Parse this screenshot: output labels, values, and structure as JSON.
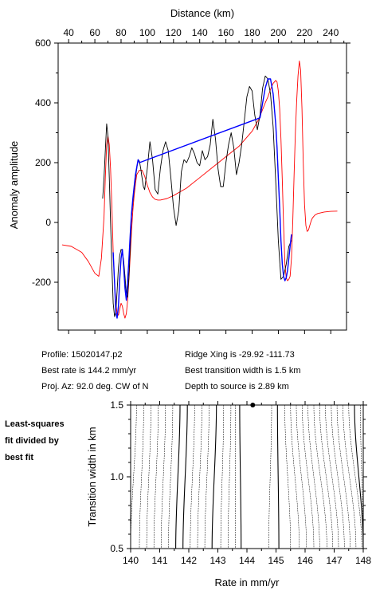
{
  "info": {
    "profile": "Profile: 15020147.p2",
    "best_rate": "Best rate is 144.2 mm/yr",
    "proj_az": "Proj. Az: 92.0 deg. CW of N",
    "ridge_xing": "Ridge Xing is -29.92 -111.73",
    "best_width": "Best transition width is 1.5 km",
    "depth": "Depth to source is   2.89 km"
  },
  "side_note": [
    "Least-squares",
    "fit divided by",
    "best fit"
  ],
  "chart_data": [
    {
      "type": "line",
      "xlabel": "Distance (km)",
      "ylabel": "Anomaly amplitude",
      "xlim": [
        32,
        252
      ],
      "ylim": [
        -360,
        600
      ],
      "xticks": [
        40,
        60,
        80,
        100,
        120,
        140,
        160,
        180,
        200,
        220,
        240
      ],
      "yticks": [
        -200,
        0,
        200,
        400,
        600
      ],
      "x_axis_position": "top",
      "grid": false,
      "colors": {
        "observed": "#000000",
        "model": "#ff0000",
        "fit_window": "#0000ff"
      },
      "series": [
        {
          "color": "#000000",
          "x": [
            66,
            67,
            68,
            69,
            70,
            71,
            72,
            73,
            74,
            75,
            76,
            77,
            78,
            79,
            80,
            81,
            82,
            83,
            84,
            85,
            86,
            87,
            88,
            89,
            90,
            91,
            92,
            93,
            94,
            95,
            96,
            97,
            98,
            100,
            102,
            104,
            106,
            108,
            110,
            112,
            114,
            116,
            118,
            120,
            122,
            124,
            126,
            128,
            130,
            132,
            134,
            136,
            138,
            140,
            142,
            144,
            146,
            148,
            150,
            152,
            154,
            156,
            158,
            160,
            162,
            164,
            166,
            168,
            170,
            172,
            174,
            176,
            178,
            180,
            182,
            184,
            186,
            188,
            190,
            192,
            194,
            196,
            198,
            200,
            202,
            204,
            206,
            208,
            210
          ],
          "y": [
            80,
            150,
            240,
            330,
            290,
            150,
            0,
            -150,
            -270,
            -315,
            -300,
            -230,
            -150,
            -110,
            -90,
            -95,
            -130,
            -180,
            -240,
            -250,
            -180,
            -80,
            20,
            70,
            110,
            150,
            180,
            210,
            205,
            180,
            150,
            120,
            110,
            180,
            270,
            210,
            110,
            95,
            180,
            240,
            270,
            240,
            150,
            50,
            -10,
            40,
            170,
            210,
            200,
            220,
            250,
            230,
            200,
            190,
            240,
            210,
            220,
            260,
            345,
            280,
            180,
            120,
            120,
            200,
            260,
            300,
            250,
            160,
            200,
            260,
            340,
            420,
            455,
            440,
            360,
            310,
            360,
            450,
            490,
            480,
            430,
            320,
            140,
            -60,
            -190,
            -180,
            -140,
            -80,
            -60
          ]
        },
        {
          "color": "#ff0000",
          "x": [
            35,
            42,
            50,
            55,
            60,
            63,
            65,
            67,
            68,
            69,
            70,
            71,
            72,
            73,
            74,
            75,
            76,
            77,
            78,
            79,
            80,
            81,
            82,
            83,
            84,
            85,
            86,
            87,
            88,
            89,
            90,
            91,
            92,
            94,
            96,
            98,
            100,
            102,
            104,
            106,
            108,
            110,
            115,
            120,
            130,
            140,
            150,
            160,
            170,
            180,
            185,
            190,
            192,
            194,
            196,
            198,
            199,
            200,
            201,
            202,
            203,
            204,
            205,
            206,
            207,
            208,
            209,
            210,
            211,
            212,
            213,
            214,
            215,
            216,
            217,
            218,
            219,
            220,
            221,
            222,
            223,
            224,
            225,
            226,
            228,
            230,
            235,
            240,
            245
          ],
          "y": [
            -75,
            -80,
            -100,
            -130,
            -170,
            -180,
            -120,
            20,
            150,
            260,
            290,
            260,
            180,
            50,
            -100,
            -200,
            -270,
            -305,
            -310,
            -290,
            -270,
            -280,
            -305,
            -320,
            -305,
            -260,
            -190,
            -110,
            -30,
            40,
            90,
            130,
            160,
            175,
            175,
            155,
            125,
            100,
            85,
            77,
            75,
            75,
            80,
            90,
            115,
            150,
            185,
            220,
            255,
            305,
            345,
            400,
            420,
            445,
            465,
            475,
            470,
            440,
            380,
            280,
            140,
            -10,
            -140,
            -185,
            -195,
            -190,
            -180,
            -120,
            0,
            160,
            300,
            410,
            490,
            540,
            510,
            380,
            200,
            60,
            -10,
            -30,
            -25,
            -10,
            5,
            15,
            25,
            30,
            35,
            37,
            38
          ]
        },
        {
          "color": "#0000ff",
          "x": [
            74,
            75,
            76,
            77,
            78,
            79,
            80,
            81,
            82,
            83,
            84,
            85,
            86,
            87,
            88,
            89,
            90,
            91,
            92,
            93,
            94,
            186,
            188,
            190,
            192,
            194,
            196,
            198,
            199,
            200,
            201,
            202,
            203,
            204,
            205,
            206,
            207,
            208,
            209,
            210
          ],
          "y": [
            -100,
            -200,
            -300,
            -320,
            -280,
            -190,
            -120,
            -90,
            -150,
            -220,
            -260,
            -200,
            -120,
            -40,
            30,
            80,
            120,
            160,
            185,
            210,
            200,
            350,
            400,
            450,
            480,
            480,
            430,
            330,
            250,
            150,
            50,
            -60,
            -140,
            -180,
            -195,
            -185,
            -160,
            -120,
            -80,
            -40
          ]
        }
      ]
    },
    {
      "type": "contour",
      "xlabel": "Rate in mm/yr",
      "ylabel": "Transition width in km",
      "xlim": [
        140,
        148
      ],
      "ylim": [
        0.5,
        1.5
      ],
      "xticks": [
        140,
        141,
        142,
        143,
        144,
        145,
        146,
        147,
        148
      ],
      "yticks": [
        0.5,
        1.0,
        1.5
      ],
      "best_fit": {
        "rate": 144.2,
        "width": 1.5
      },
      "grid": false
    }
  ]
}
